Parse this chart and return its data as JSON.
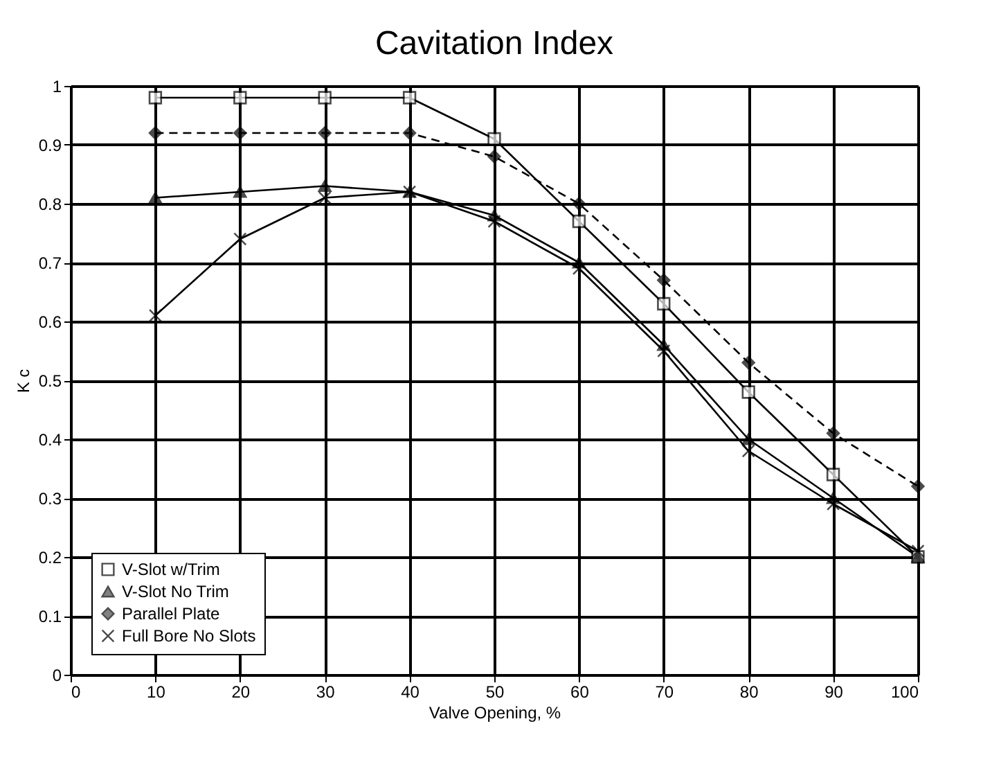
{
  "chart_data": {
    "type": "line",
    "title": "Cavitation Index",
    "xlabel": "Valve Opening,  %",
    "ylabel": "K c",
    "x": [
      10,
      20,
      30,
      40,
      50,
      60,
      70,
      80,
      90,
      100
    ],
    "series": [
      {
        "name": "V-Slot w/Trim",
        "color": "#000000",
        "marker": "square",
        "line_style": "solid",
        "values": [
          0.98,
          0.98,
          0.98,
          0.98,
          0.91,
          0.77,
          0.63,
          0.48,
          0.34,
          0.2
        ]
      },
      {
        "name": "V-Slot No Trim",
        "color": "#000000",
        "marker": "triangle",
        "line_style": "solid",
        "values": [
          0.81,
          0.82,
          0.83,
          0.82,
          0.78,
          0.7,
          0.56,
          0.4,
          0.3,
          0.2
        ]
      },
      {
        "name": "Parallel Plate",
        "color": "#000000",
        "marker": "diamond",
        "line_style": "dashed",
        "values": [
          0.92,
          0.92,
          0.92,
          0.92,
          0.88,
          0.8,
          0.67,
          0.53,
          0.41,
          0.32
        ]
      },
      {
        "name": "Full Bore No Slots",
        "color": "#000000",
        "marker": "cross",
        "line_style": "solid",
        "values": [
          0.61,
          0.74,
          0.81,
          0.82,
          0.77,
          0.69,
          0.55,
          0.38,
          0.29,
          0.21
        ]
      }
    ],
    "xlim": [
      0,
      100
    ],
    "xticks": [
      0,
      10,
      20,
      30,
      40,
      50,
      60,
      70,
      80,
      90,
      100
    ],
    "ylim": [
      0,
      1
    ],
    "yticks": [
      0,
      0.1,
      0.2,
      0.3,
      0.4,
      0.5,
      0.6,
      0.7,
      0.8,
      0.9,
      1
    ],
    "grid": true,
    "legend": "bottom left"
  }
}
